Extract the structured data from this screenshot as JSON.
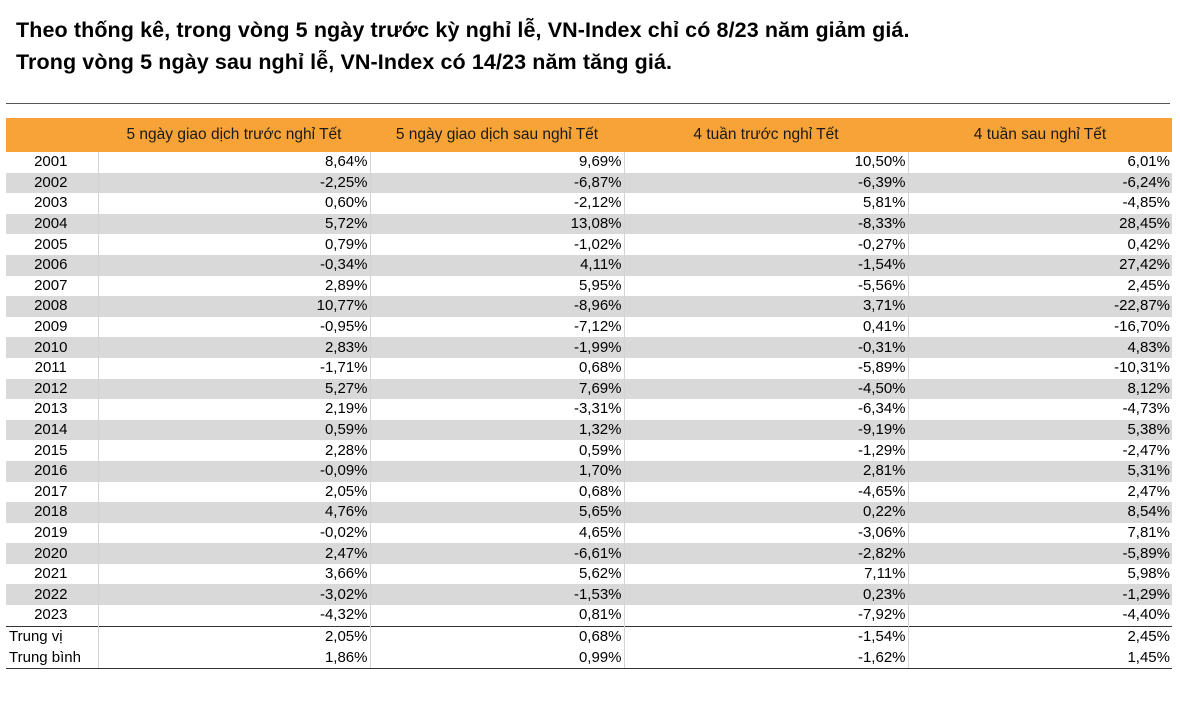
{
  "heading": {
    "line1": "Theo thống kê, trong vòng 5 ngày trước kỳ nghỉ lễ, VN-Index chỉ có 8/23 năm giảm giá.",
    "line2": "Trong vòng 5 ngày sau nghỉ lễ, VN-Index có 14/23 năm tăng giá."
  },
  "table": {
    "headers": [
      "",
      "5 ngày giao dịch trước nghỉ Tết",
      "5 ngày giao dịch sau nghỉ Tết",
      "4 tuần trước nghỉ Tết",
      "4 tuần sau nghỉ Tết"
    ],
    "rows": [
      [
        "2001",
        "8,64%",
        "9,69%",
        "10,50%",
        "6,01%"
      ],
      [
        "2002",
        "-2,25%",
        "-6,87%",
        "-6,39%",
        "-6,24%"
      ],
      [
        "2003",
        "0,60%",
        "-2,12%",
        "5,81%",
        "-4,85%"
      ],
      [
        "2004",
        "5,72%",
        "13,08%",
        "-8,33%",
        "28,45%"
      ],
      [
        "2005",
        "0,79%",
        "-1,02%",
        "-0,27%",
        "0,42%"
      ],
      [
        "2006",
        "-0,34%",
        "4,11%",
        "-1,54%",
        "27,42%"
      ],
      [
        "2007",
        "2,89%",
        "5,95%",
        "-5,56%",
        "2,45%"
      ],
      [
        "2008",
        "10,77%",
        "-8,96%",
        "3,71%",
        "-22,87%"
      ],
      [
        "2009",
        "-0,95%",
        "-7,12%",
        "0,41%",
        "-16,70%"
      ],
      [
        "2010",
        "2,83%",
        "-1,99%",
        "-0,31%",
        "4,83%"
      ],
      [
        "2011",
        "-1,71%",
        "0,68%",
        "-5,89%",
        "-10,31%"
      ],
      [
        "2012",
        "5,27%",
        "7,69%",
        "-4,50%",
        "8,12%"
      ],
      [
        "2013",
        "2,19%",
        "-3,31%",
        "-6,34%",
        "-4,73%"
      ],
      [
        "2014",
        "0,59%",
        "1,32%",
        "-9,19%",
        "5,38%"
      ],
      [
        "2015",
        "2,28%",
        "0,59%",
        "-1,29%",
        "-2,47%"
      ],
      [
        "2016",
        "-0,09%",
        "1,70%",
        "2,81%",
        "5,31%"
      ],
      [
        "2017",
        "2,05%",
        "0,68%",
        "-4,65%",
        "2,47%"
      ],
      [
        "2018",
        "4,76%",
        "5,65%",
        "0,22%",
        "8,54%"
      ],
      [
        "2019",
        "-0,02%",
        "4,65%",
        "-3,06%",
        "7,81%"
      ],
      [
        "2020",
        "2,47%",
        "-6,61%",
        "-2,82%",
        "-5,89%"
      ],
      [
        "2021",
        "3,66%",
        "5,62%",
        "7,11%",
        "5,98%"
      ],
      [
        "2022",
        "-3,02%",
        "-1,53%",
        "0,23%",
        "-1,29%"
      ],
      [
        "2023",
        "-4,32%",
        "0,81%",
        "-7,92%",
        "-4,40%"
      ]
    ],
    "summary": [
      [
        "Trung vị",
        "2,05%",
        "0,68%",
        "-1,54%",
        "2,45%"
      ],
      [
        "Trung bình",
        "1,86%",
        "0,99%",
        "-1,62%",
        "1,45%"
      ]
    ]
  }
}
